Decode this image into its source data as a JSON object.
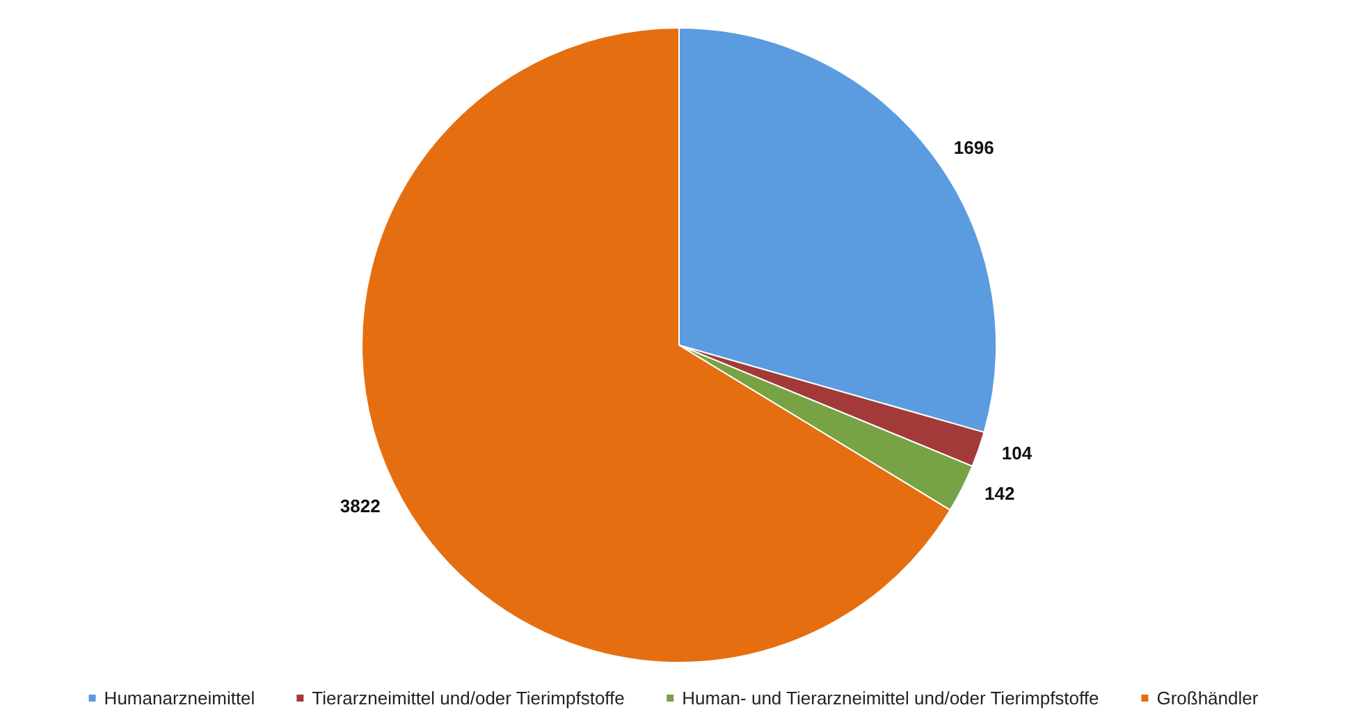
{
  "chart_data": {
    "type": "pie",
    "categories": [
      "Humanarzneimittel",
      "Tierarzneimittel und/oder Tierimpfstoffe",
      "Human- und Tierarzneimittel und/oder Tierimpfstoffe",
      "Großhändler"
    ],
    "values": [
      1696,
      104,
      142,
      3822
    ],
    "colors": [
      "#5b9be0",
      "#a33a3a",
      "#77a344",
      "#e56f10"
    ],
    "data_labels": true,
    "legend": "bottom"
  }
}
